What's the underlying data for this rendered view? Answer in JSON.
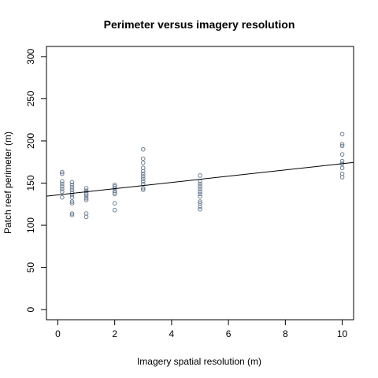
{
  "chart_data": {
    "type": "scatter",
    "title": "Perimeter versus imagery resolution",
    "xlabel": "Imagery spatial resolution (m)",
    "ylabel": "Patch reef perimeter (m)",
    "xlim": [
      -0.4,
      10.4
    ],
    "ylim": [
      -12,
      312
    ],
    "xticks": [
      0,
      2,
      4,
      6,
      8,
      10
    ],
    "yticks": [
      0,
      50,
      100,
      150,
      200,
      250,
      300
    ],
    "grid": false,
    "legend": "none",
    "point_color": "#6e7f92",
    "series": [
      {
        "points": [
          {
            "x": 0.15,
            "y": 163
          },
          {
            "x": 0.15,
            "y": 161
          },
          {
            "x": 0.15,
            "y": 152
          },
          {
            "x": 0.15,
            "y": 149
          },
          {
            "x": 0.15,
            "y": 146
          },
          {
            "x": 0.15,
            "y": 143
          },
          {
            "x": 0.15,
            "y": 140
          },
          {
            "x": 0.15,
            "y": 133
          },
          {
            "x": 0.5,
            "y": 151
          },
          {
            "x": 0.5,
            "y": 148
          },
          {
            "x": 0.5,
            "y": 145
          },
          {
            "x": 0.5,
            "y": 142
          },
          {
            "x": 0.5,
            "y": 139
          },
          {
            "x": 0.5,
            "y": 136
          },
          {
            "x": 0.5,
            "y": 133
          },
          {
            "x": 0.5,
            "y": 128
          },
          {
            "x": 0.5,
            "y": 126
          },
          {
            "x": 0.5,
            "y": 114
          },
          {
            "x": 0.5,
            "y": 112
          },
          {
            "x": 1,
            "y": 144
          },
          {
            "x": 1,
            "y": 141
          },
          {
            "x": 1,
            "y": 139
          },
          {
            "x": 1,
            "y": 137
          },
          {
            "x": 1,
            "y": 135
          },
          {
            "x": 1,
            "y": 132
          },
          {
            "x": 1,
            "y": 130
          },
          {
            "x": 1,
            "y": 114
          },
          {
            "x": 1,
            "y": 110
          },
          {
            "x": 2,
            "y": 148
          },
          {
            "x": 2,
            "y": 146
          },
          {
            "x": 2,
            "y": 144
          },
          {
            "x": 2,
            "y": 141
          },
          {
            "x": 2,
            "y": 139
          },
          {
            "x": 2,
            "y": 137
          },
          {
            "x": 2,
            "y": 126
          },
          {
            "x": 2,
            "y": 118
          },
          {
            "x": 3,
            "y": 190
          },
          {
            "x": 3,
            "y": 179
          },
          {
            "x": 3,
            "y": 174
          },
          {
            "x": 3,
            "y": 168
          },
          {
            "x": 3,
            "y": 164
          },
          {
            "x": 3,
            "y": 161
          },
          {
            "x": 3,
            "y": 158
          },
          {
            "x": 3,
            "y": 155
          },
          {
            "x": 3,
            "y": 152
          },
          {
            "x": 3,
            "y": 149
          },
          {
            "x": 3,
            "y": 144
          },
          {
            "x": 3,
            "y": 142
          },
          {
            "x": 5,
            "y": 159
          },
          {
            "x": 5,
            "y": 152
          },
          {
            "x": 5,
            "y": 149
          },
          {
            "x": 5,
            "y": 146
          },
          {
            "x": 5,
            "y": 143
          },
          {
            "x": 5,
            "y": 140
          },
          {
            "x": 5,
            "y": 137
          },
          {
            "x": 5,
            "y": 134
          },
          {
            "x": 5,
            "y": 128
          },
          {
            "x": 5,
            "y": 126
          },
          {
            "x": 5,
            "y": 122
          },
          {
            "x": 5,
            "y": 119
          },
          {
            "x": 10,
            "y": 208
          },
          {
            "x": 10,
            "y": 196
          },
          {
            "x": 10,
            "y": 194
          },
          {
            "x": 10,
            "y": 184
          },
          {
            "x": 10,
            "y": 176
          },
          {
            "x": 10,
            "y": 173
          },
          {
            "x": 10,
            "y": 168
          },
          {
            "x": 10,
            "y": 161
          },
          {
            "x": 10,
            "y": 157
          }
        ]
      }
    ],
    "fit_line": {
      "intercept": 136,
      "slope": 3.7
    }
  }
}
